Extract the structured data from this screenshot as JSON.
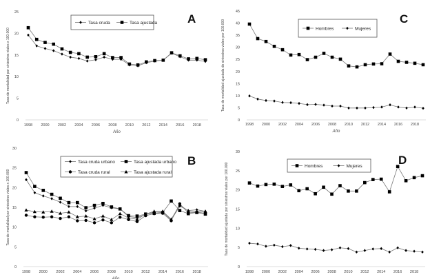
{
  "chart_data": [
    {
      "panel": "A",
      "type": "line",
      "x": [
        1998,
        1999,
        2000,
        2001,
        2002,
        2003,
        2004,
        2005,
        2006,
        2007,
        2008,
        2009,
        2010,
        2011,
        2012,
        2013,
        2014,
        2015,
        2016,
        2017,
        2018,
        2019
      ],
      "xticks": [
        "1998",
        "2000",
        "2002",
        "2004",
        "2006",
        "2008",
        "2010",
        "2012",
        "2014",
        "2016",
        "2018"
      ],
      "yticks": [
        "0",
        "5",
        "10",
        "15",
        "20",
        "25"
      ],
      "ylim": [
        0,
        25
      ],
      "xlabel": "Año",
      "ylabel": "Tasa de mortalidad por siniestros viales x 100.000",
      "legend": "top-center",
      "grid": false,
      "series": [
        {
          "name": "Tasa cruda",
          "marker": "diamond",
          "values": [
            19.6,
            17.1,
            16.5,
            16.0,
            15.2,
            14.5,
            14.2,
            13.6,
            13.9,
            14.5,
            14.0,
            14.0,
            12.7,
            12.5,
            13.2,
            13.6,
            13.8,
            15.4,
            14.6,
            13.8,
            13.8,
            13.5
          ]
        },
        {
          "name": "Tasa ajustada",
          "marker": "square",
          "values": [
            21.3,
            18.6,
            17.9,
            17.5,
            16.4,
            15.6,
            15.3,
            14.5,
            14.6,
            15.3,
            14.4,
            14.4,
            12.9,
            12.7,
            13.4,
            13.7,
            13.8,
            15.5,
            14.8,
            14.1,
            14.2,
            13.9
          ]
        }
      ]
    },
    {
      "panel": "C",
      "type": "line",
      "x": [
        1998,
        1999,
        2000,
        2001,
        2002,
        2003,
        2004,
        2005,
        2006,
        2007,
        2008,
        2009,
        2010,
        2011,
        2012,
        2013,
        2014,
        2015,
        2016,
        2017,
        2018,
        2019
      ],
      "xticks": [
        "1998",
        "2000",
        "2002",
        "2004",
        "2006",
        "2008",
        "2010",
        "2012",
        "2014",
        "2016",
        "2018"
      ],
      "yticks": [
        "0",
        "5",
        "10",
        "15",
        "20",
        "25",
        "30",
        "35",
        "40",
        "45"
      ],
      "ylim": [
        0,
        45
      ],
      "xlabel": "Año",
      "ylabel": "Tasa de mortalidad ajustada de siniestros viales por 100.000",
      "legend": "top-center",
      "grid": false,
      "series": [
        {
          "name": "Hombres",
          "marker": "square",
          "values": [
            39.6,
            33.6,
            32.4,
            30.4,
            29.0,
            26.8,
            27.0,
            24.9,
            25.9,
            27.5,
            25.9,
            25.1,
            22.3,
            21.9,
            22.8,
            23.1,
            23.2,
            27.2,
            24.2,
            23.8,
            23.4,
            22.8
          ]
        },
        {
          "name": "Mujeres",
          "marker": "diamond",
          "values": [
            9.9,
            8.6,
            8.0,
            7.8,
            7.2,
            7.1,
            6.8,
            6.3,
            6.4,
            6.1,
            5.7,
            5.7,
            4.9,
            4.9,
            4.9,
            5.1,
            5.3,
            6.2,
            5.3,
            4.9,
            5.3,
            4.8
          ]
        }
      ]
    },
    {
      "panel": "B",
      "type": "line",
      "x": [
        1998,
        1999,
        2000,
        2001,
        2002,
        2003,
        2004,
        2005,
        2006,
        2007,
        2008,
        2009,
        2010,
        2011,
        2012,
        2013,
        2014,
        2015,
        2016,
        2017,
        2018,
        2019
      ],
      "xticks": [
        "1998",
        "2000",
        "2002",
        "2004",
        "2006",
        "2008",
        "2010",
        "2012",
        "2014",
        "2016",
        "2018"
      ],
      "yticks": [
        "0",
        "5",
        "10",
        "15",
        "20",
        "25",
        "30"
      ],
      "ylim": [
        0,
        30
      ],
      "xlabel": "Año",
      "ylabel": "Tasa de mortalidad por siniestros viales x 100.000",
      "legend": "top-center",
      "grid": false,
      "series": [
        {
          "name": "Tasa cruda urbano",
          "marker": "diamond",
          "values": [
            22.0,
            18.7,
            17.9,
            17.2,
            16.3,
            15.2,
            15.2,
            14.1,
            14.8,
            15.5,
            14.9,
            14.6,
            12.7,
            12.4,
            13.2,
            13.8,
            13.8,
            11.8,
            15.3,
            14.2,
            14.4,
            14.0
          ]
        },
        {
          "name": "Tasa ajustada urbano",
          "marker": "square",
          "values": [
            23.8,
            20.3,
            19.3,
            18.3,
            17.3,
            16.2,
            16.2,
            14.9,
            15.5,
            16.0,
            15.1,
            14.6,
            12.9,
            12.8,
            13.3,
            13.5,
            13.7,
            16.6,
            14.2,
            13.4,
            13.7,
            13.3
          ]
        },
        {
          "name": "Tasa cruda rural",
          "marker": "circle",
          "values": [
            13.0,
            12.6,
            12.5,
            12.6,
            12.2,
            12.6,
            11.6,
            11.7,
            11.1,
            11.8,
            11.1,
            12.5,
            11.9,
            11.4,
            12.9,
            13.4,
            13.5,
            11.6,
            15.9,
            13.6,
            13.8,
            13.5
          ]
        },
        {
          "name": "Tasa ajustada rural",
          "marker": "triangle",
          "values": [
            14.3,
            13.9,
            13.8,
            14.0,
            13.5,
            13.8,
            12.6,
            12.8,
            12.1,
            12.8,
            11.9,
            13.4,
            12.3,
            12.0,
            13.3,
            14.0,
            14.0,
            12.0,
            15.6,
            14.1,
            13.9,
            14.0
          ]
        }
      ]
    },
    {
      "panel": "D",
      "type": "line",
      "x": [
        1998,
        1999,
        2000,
        2001,
        2002,
        2003,
        2004,
        2005,
        2006,
        2007,
        2008,
        2009,
        2010,
        2011,
        2012,
        2013,
        2014,
        2015,
        2016,
        2017,
        2018,
        2019
      ],
      "xticks": [
        "1998",
        "2000",
        "2002",
        "2004",
        "2006",
        "2008",
        "2010",
        "2012",
        "2014",
        "2016",
        "2018"
      ],
      "yticks": [
        "0",
        "5",
        "10",
        "15",
        "20",
        "25",
        "30"
      ],
      "ylim": [
        0,
        30
      ],
      "xlabel": "",
      "ylabel": "Tasa de mortalidad ajustada por siniestros viales por 100.000",
      "legend": "top-center",
      "grid": false,
      "series": [
        {
          "name": "Hombres",
          "marker": "square",
          "values": [
            21.8,
            21.0,
            21.4,
            21.5,
            20.9,
            21.3,
            19.8,
            20.3,
            19.0,
            20.7,
            18.9,
            21.1,
            19.7,
            19.7,
            21.9,
            22.7,
            22.8,
            19.5,
            26.1,
            22.4,
            23.2,
            23.7
          ]
        },
        {
          "name": "Mujeres",
          "marker": "diamond",
          "values": [
            6.1,
            5.9,
            5.3,
            5.6,
            5.2,
            5.5,
            4.8,
            4.6,
            4.5,
            4.2,
            4.4,
            4.9,
            4.7,
            3.8,
            4.2,
            4.6,
            4.7,
            3.8,
            4.9,
            4.2,
            4.0,
            3.8
          ]
        }
      ]
    }
  ]
}
